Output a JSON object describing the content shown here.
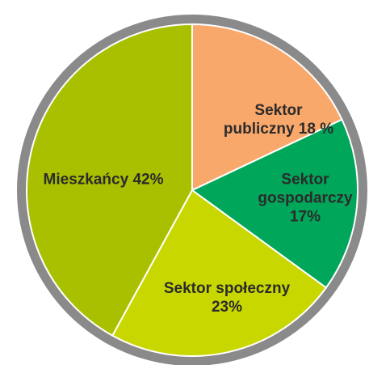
{
  "chart_data": {
    "type": "pie",
    "categories": [
      "Sektor publiczny",
      "Sektor gospodarczy",
      "Sektor społeczny",
      "Mieszkańcy"
    ],
    "values": [
      18,
      17,
      23,
      42
    ],
    "value_labels": [
      "18 %",
      "17%",
      "23%",
      "42%"
    ],
    "colors": [
      "#f9a86b",
      "#00a65a",
      "#c9d700",
      "#a9c000"
    ]
  }
}
